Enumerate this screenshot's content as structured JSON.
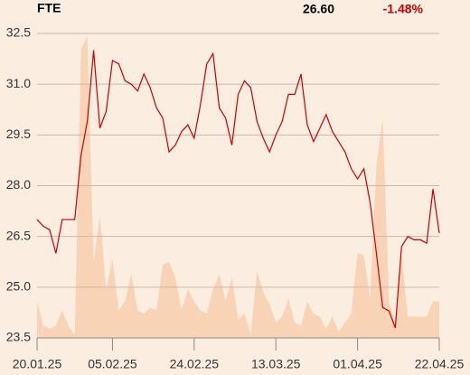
{
  "header": {
    "symbol": "FTE",
    "last": "26.60",
    "change": "-1.48%"
  },
  "chart_data": {
    "type": "line",
    "xlim": [
      0,
      64
    ],
    "xticks": [
      {
        "value": 0,
        "label": "20.01.25"
      },
      {
        "value": 12,
        "label": "05.02.25"
      },
      {
        "value": 25,
        "label": "24.02.25"
      },
      {
        "value": 38,
        "label": "13.03.25"
      },
      {
        "value": 51,
        "label": "01.04.25"
      },
      {
        "value": 64,
        "label": "22.04.25"
      }
    ],
    "ylim": [
      23.5,
      32.5
    ],
    "yticks": [
      23.5,
      {
        "value": 25,
        "label": "25.0"
      },
      26.5,
      {
        "value": 28,
        "label": "28.0"
      },
      29.5,
      {
        "value": 31,
        "label": "31.0"
      },
      32.5
    ],
    "y2lim": [
      0,
      100
    ],
    "grid": true,
    "series": [
      {
        "name": "Volume",
        "type": "area",
        "axis": "y2",
        "color": "#f9d3b6",
        "values": [
          12,
          4,
          3,
          4,
          9,
          4,
          1,
          95,
          99,
          25,
          40,
          16,
          26,
          9,
          12,
          21,
          9,
          8,
          10,
          9,
          24,
          25,
          20,
          9,
          16,
          12,
          9,
          8,
          16,
          21,
          12,
          20,
          6,
          8,
          1,
          22,
          15,
          11,
          5,
          7,
          13,
          5,
          4,
          12,
          8,
          7,
          3,
          7,
          2,
          5,
          8,
          28,
          27,
          13,
          57,
          72,
          12,
          4,
          27,
          7,
          7,
          7,
          7,
          12,
          12
        ]
      },
      {
        "name": "FTE",
        "type": "line",
        "color": "#cc0000",
        "values": [
          27.0,
          26.8,
          26.7,
          26.0,
          27.0,
          27.0,
          27.0,
          28.9,
          29.9,
          32.0,
          29.7,
          30.2,
          31.7,
          31.6,
          31.1,
          31.0,
          30.8,
          31.3,
          30.9,
          30.3,
          30.0,
          29.0,
          29.2,
          29.6,
          29.8,
          29.4,
          30.4,
          31.6,
          31.9,
          30.3,
          30.0,
          29.2,
          30.7,
          31.1,
          30.9,
          29.9,
          29.4,
          29.0,
          29.5,
          29.9,
          30.7,
          30.7,
          31.3,
          29.8,
          29.3,
          29.7,
          30.1,
          29.6,
          29.3,
          29.0,
          28.5,
          28.2,
          28.5,
          27.5,
          26.0,
          24.4,
          24.3,
          23.8,
          26.2,
          26.5,
          26.4,
          26.4,
          26.3,
          27.9,
          26.6
        ]
      }
    ]
  }
}
